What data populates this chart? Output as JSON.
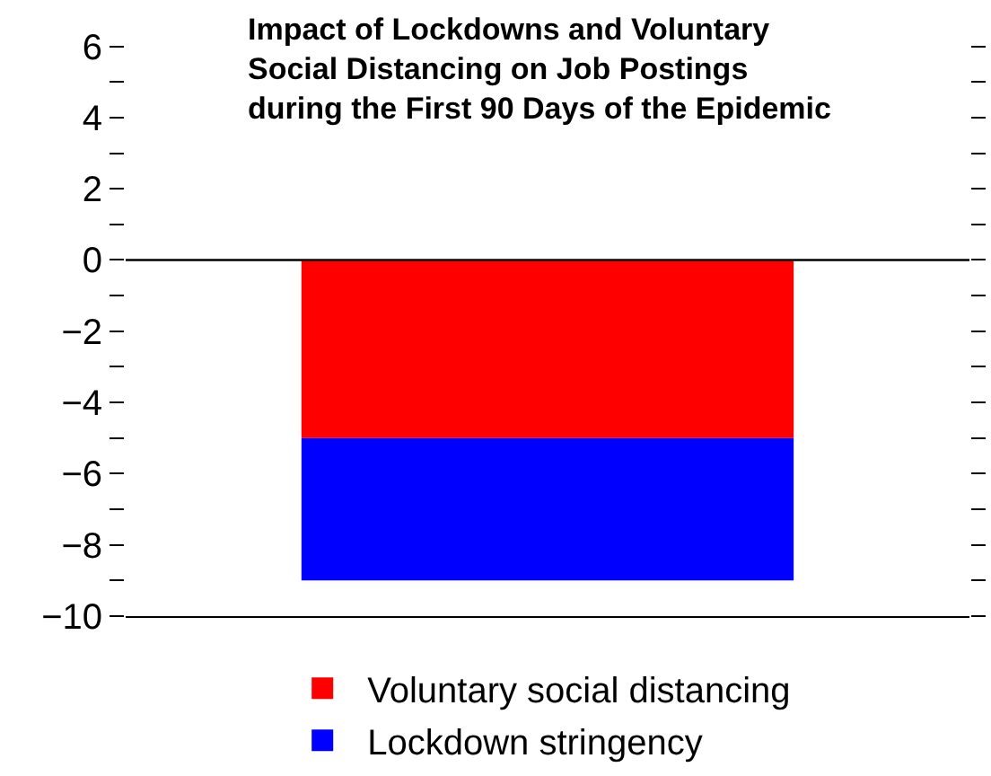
{
  "chart_data": {
    "type": "bar",
    "stacked": true,
    "title": "Impact of Lockdowns and Voluntary Social Distancing on Job Postings during the First 90 Days of the Epidemic",
    "categories": [
      null
    ],
    "series": [
      {
        "name": "Voluntary social distancing",
        "color": "#ff0000",
        "values": [
          -5
        ]
      },
      {
        "name": "Lockdown stringency",
        "color": "#0000ff",
        "values": [
          -4
        ]
      }
    ],
    "ylim": [
      -10,
      7.3
    ],
    "yticks": [
      -10,
      {
        "value": -9,
        "label": null
      },
      -8,
      {
        "value": -7,
        "label": null
      },
      -6,
      {
        "value": -5,
        "label": null
      },
      -4,
      {
        "value": -3,
        "label": null
      },
      -2,
      {
        "value": -1,
        "label": null
      },
      0,
      {
        "value": 1,
        "label": null
      },
      2,
      {
        "value": 3,
        "label": null
      },
      4,
      {
        "value": 5,
        "label": null
      },
      6
    ],
    "ref_lines": [
      {
        "axis": "y",
        "value": 0,
        "color": "#000000"
      }
    ],
    "legend": "bottom"
  }
}
